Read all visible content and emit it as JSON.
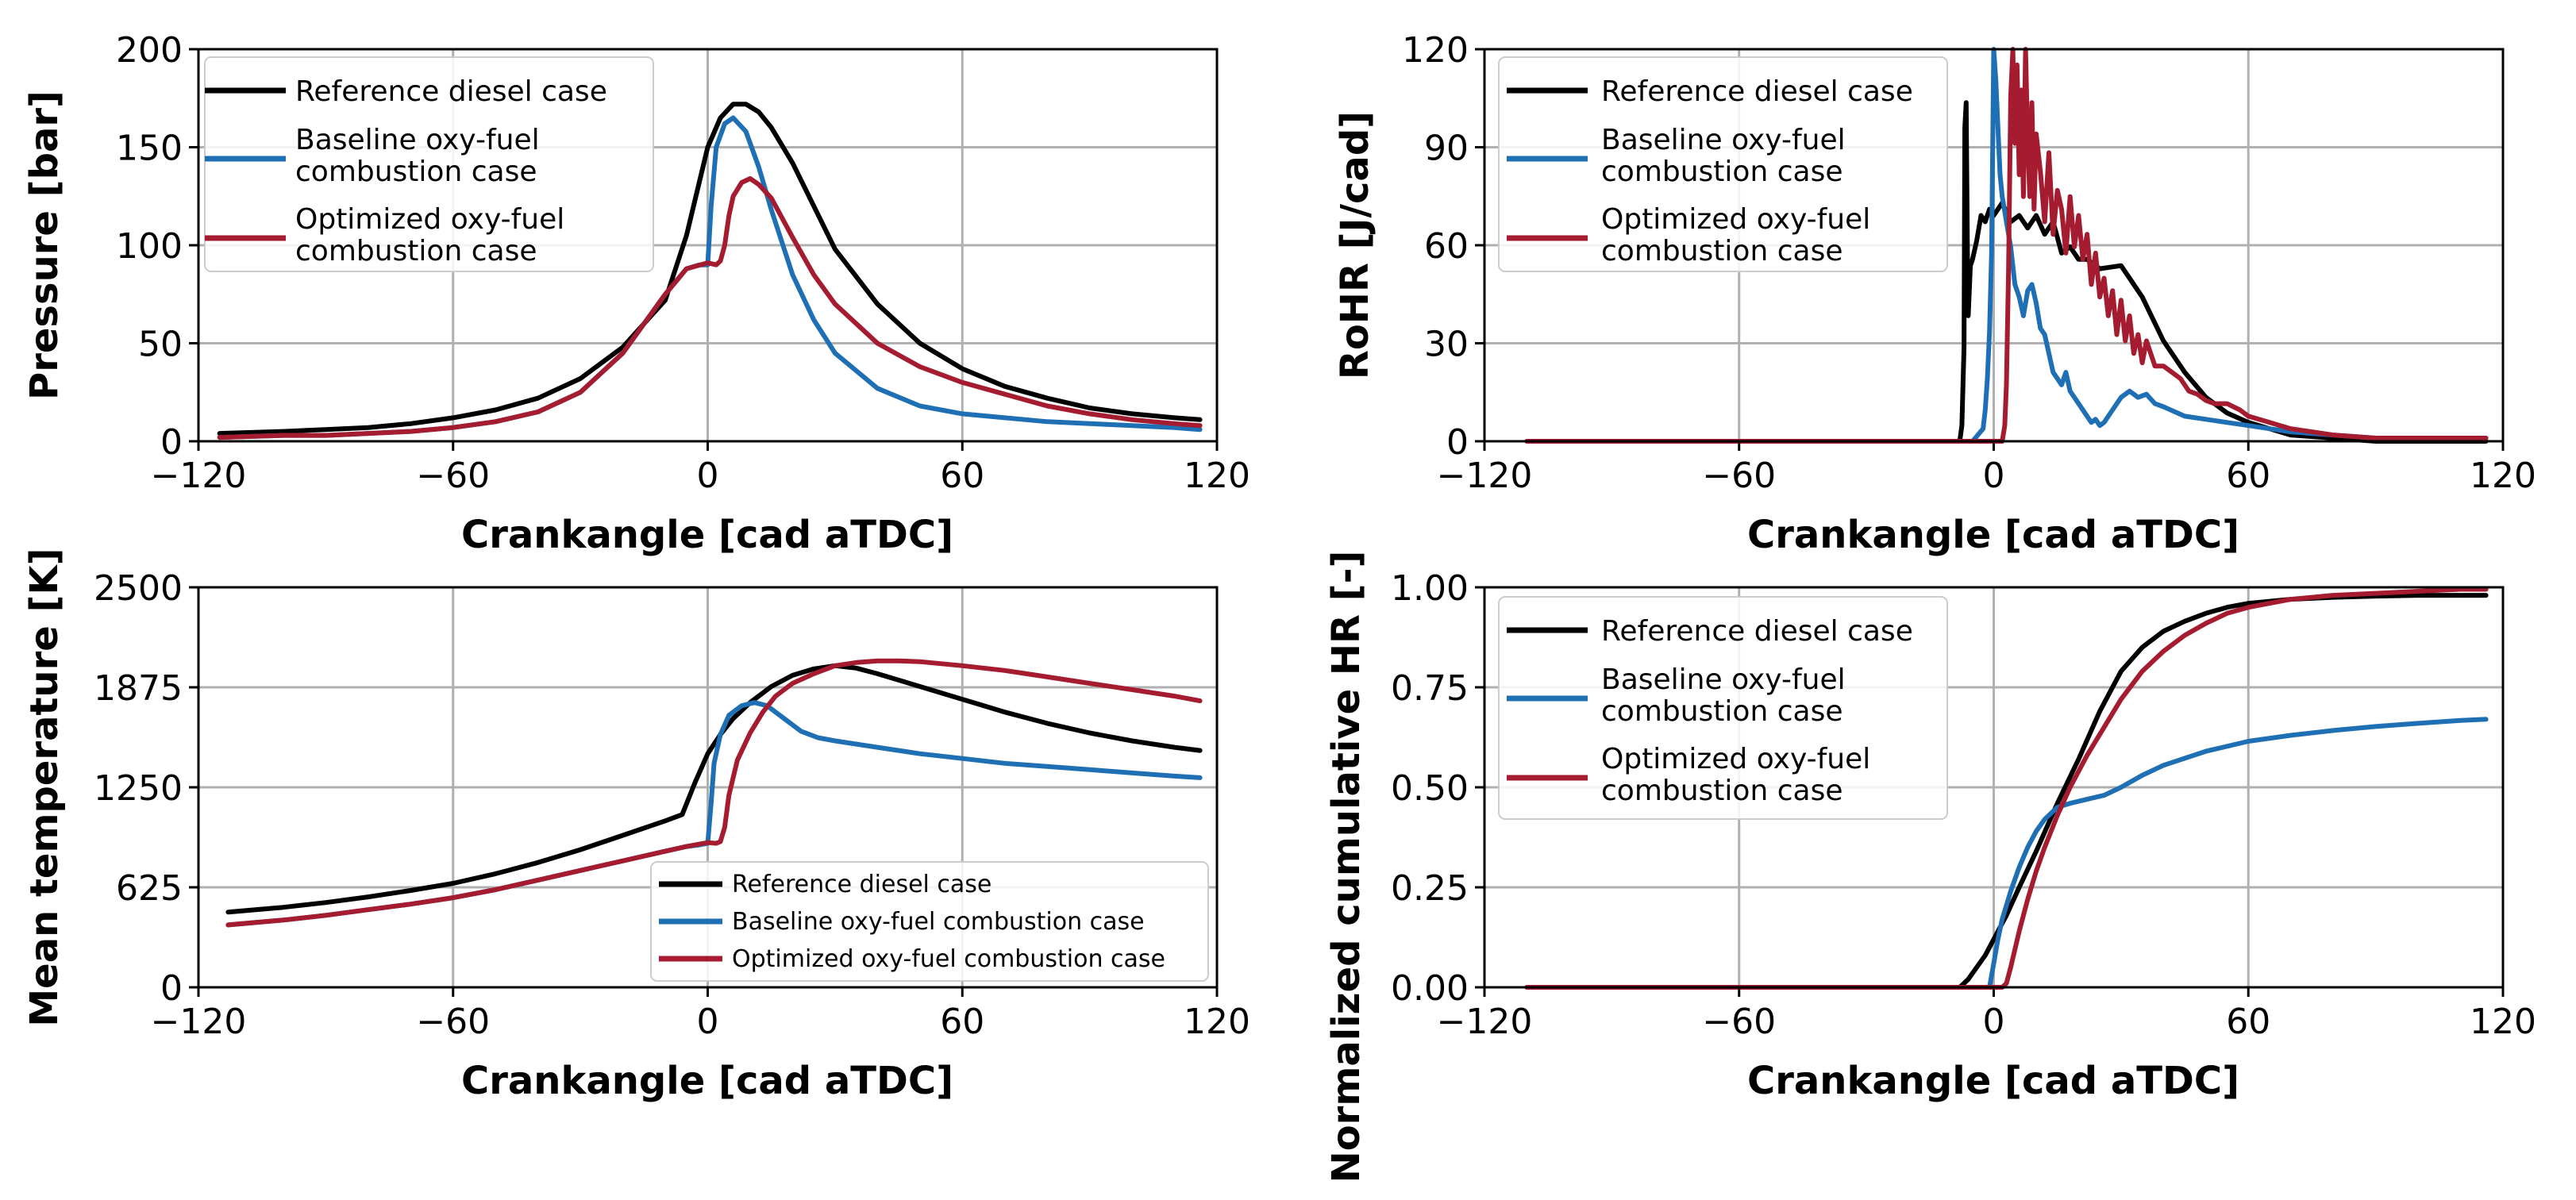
{
  "colors": {
    "reference": "#000000",
    "baseline": "#1f6fb4",
    "optimized": "#a51c30",
    "grid": "#b0b0b0"
  },
  "chart_data": [
    {
      "id": "pressure",
      "type": "line",
      "title": "",
      "xlabel": "Crankangle [cad aTDC]",
      "ylabel": "Pressure [bar]",
      "xlim": [
        -120,
        120
      ],
      "ylim": [
        0,
        200
      ],
      "xticks": [
        "−120",
        "−60",
        "0",
        "60",
        "120"
      ],
      "yticks": [
        "0",
        "50",
        "100",
        "150",
        "200"
      ],
      "legend_position": "upper-left",
      "legend": [
        "Reference diesel case",
        "Baseline oxy-fuel|combustion case",
        "Optimized oxy-fuel| combustion case"
      ],
      "series": [
        {
          "name": "Reference diesel case",
          "color_key": "reference",
          "x": [
            -115,
            -100,
            -90,
            -80,
            -70,
            -60,
            -50,
            -40,
            -30,
            -20,
            -10,
            -5,
            0,
            3,
            6,
            9,
            12,
            15,
            20,
            25,
            30,
            40,
            50,
            60,
            70,
            80,
            90,
            100,
            110,
            116
          ],
          "y": [
            4,
            5,
            6,
            7,
            9,
            12,
            16,
            22,
            32,
            48,
            72,
            105,
            150,
            165,
            172,
            172,
            168,
            160,
            142,
            120,
            98,
            70,
            50,
            37,
            28,
            22,
            17,
            14,
            12,
            11
          ]
        },
        {
          "name": "Baseline oxy-fuel combustion case",
          "color_key": "baseline",
          "x": [
            -115,
            -100,
            -90,
            -80,
            -70,
            -60,
            -50,
            -40,
            -30,
            -20,
            -10,
            -5,
            -2,
            0,
            0.8,
            2,
            4,
            6,
            9,
            12,
            15,
            20,
            25,
            30,
            40,
            50,
            60,
            70,
            80,
            90,
            100,
            110,
            116
          ],
          "y": [
            2,
            3,
            3,
            4,
            5,
            7,
            10,
            15,
            25,
            45,
            75,
            88,
            90,
            90,
            120,
            150,
            162,
            165,
            158,
            140,
            118,
            85,
            62,
            45,
            27,
            18,
            14,
            12,
            10,
            9,
            8,
            7,
            6
          ]
        },
        {
          "name": "Optimized oxy-fuel combustion case",
          "color_key": "optimized",
          "x": [
            -115,
            -100,
            -90,
            -80,
            -70,
            -60,
            -50,
            -40,
            -30,
            -20,
            -10,
            -5,
            0,
            2,
            3,
            4,
            5,
            6,
            8,
            10,
            12,
            15,
            20,
            25,
            30,
            40,
            50,
            60,
            70,
            80,
            90,
            100,
            110,
            116
          ],
          "y": [
            2,
            3,
            3,
            4,
            5,
            7,
            10,
            15,
            25,
            45,
            75,
            88,
            91,
            90,
            92,
            100,
            115,
            125,
            132,
            134,
            131,
            124,
            104,
            85,
            70,
            50,
            38,
            30,
            24,
            18,
            14,
            11,
            9,
            8
          ]
        }
      ]
    },
    {
      "id": "rohr",
      "type": "line",
      "title": "",
      "xlabel": "Crankangle [cad aTDC]",
      "ylabel": "RoHR [J/cad]",
      "xlim": [
        -120,
        120
      ],
      "ylim": [
        0,
        125
      ],
      "xticks": [
        "−120",
        "−60",
        "0",
        "60",
        "120"
      ],
      "yticks": [
        "0",
        "30",
        "60",
        "90",
        "120"
      ],
      "legend_position": "upper-left",
      "legend": [
        "Reference diesel case",
        "Baseline oxy-fuel|combustion case",
        "Optimized oxy-fuel| combustion case"
      ],
      "series": [
        {
          "name": "Reference diesel case",
          "color_key": "reference",
          "x": [
            -110,
            -60,
            -8,
            -7.5,
            -7,
            -6.8,
            -6.5,
            -6.2,
            -6,
            -5.5,
            -5,
            -4,
            -3,
            -2,
            -1,
            0,
            2,
            4,
            6,
            8,
            10,
            12,
            14,
            16,
            18,
            20,
            22,
            25,
            30,
            35,
            40,
            45,
            50,
            55,
            60,
            70,
            80,
            90,
            100,
            110,
            116
          ],
          "y": [
            0,
            0,
            0,
            5,
            30,
            100,
            108,
            60,
            40,
            56,
            58,
            64,
            72,
            70,
            74,
            72,
            76,
            70,
            72,
            68,
            72,
            66,
            70,
            60,
            62,
            58,
            58,
            55,
            56,
            46,
            32,
            22,
            14,
            9,
            6,
            2,
            1,
            0,
            0,
            0,
            0
          ]
        },
        {
          "name": "Baseline oxy-fuel combustion case",
          "color_key": "baseline",
          "x": [
            -110,
            -60,
            -5,
            -2.5,
            -2,
            -1.5,
            -1,
            -0.5,
            0,
            0.5,
            1,
            1.5,
            2,
            2.5,
            3,
            3.5,
            4,
            5,
            6,
            7,
            8,
            9,
            10,
            11,
            12,
            13,
            14,
            15,
            16,
            17,
            18,
            19,
            20,
            21,
            22,
            23,
            24,
            25,
            26,
            28,
            30,
            32,
            34,
            36,
            38,
            40,
            45,
            50,
            55,
            60,
            70,
            80,
            90,
            100,
            110,
            116
          ],
          "y": [
            0,
            0,
            0,
            4,
            10,
            20,
            35,
            60,
            125,
            115,
            100,
            85,
            78,
            74,
            70,
            66,
            62,
            50,
            46,
            40,
            48,
            50,
            44,
            36,
            34,
            28,
            22,
            20,
            18,
            22,
            16,
            14,
            12,
            10,
            8,
            6,
            7,
            5,
            6,
            10,
            14,
            16,
            14,
            15,
            12,
            11,
            8,
            7,
            6,
            5,
            3,
            2,
            1,
            1,
            1,
            1
          ]
        },
        {
          "name": "Optimized oxy-fuel combustion case",
          "color_key": "optimized",
          "x": [
            -110,
            -60,
            2,
            2.6,
            3,
            3.5,
            4,
            4.5,
            5,
            5.5,
            6,
            6.5,
            7,
            7.5,
            8,
            8.5,
            9,
            9.5,
            10,
            11,
            12,
            13,
            14,
            15,
            16,
            17,
            18,
            19,
            20,
            21,
            22,
            23,
            24,
            25,
            26,
            27,
            28,
            29,
            30,
            31,
            32,
            33,
            34,
            35,
            36,
            38,
            40,
            42,
            44,
            46,
            48,
            50,
            52,
            55,
            58,
            60,
            65,
            70,
            80,
            90,
            100,
            110,
            116
          ],
          "y": [
            0,
            0,
            0,
            5,
            18,
            55,
            110,
            125,
            95,
            120,
            85,
            112,
            78,
            125,
            96,
            78,
            108,
            74,
            98,
            86,
            70,
            92,
            66,
            80,
            74,
            60,
            78,
            62,
            72,
            58,
            66,
            50,
            60,
            46,
            52,
            40,
            48,
            34,
            45,
            32,
            40,
            28,
            34,
            25,
            32,
            24,
            24,
            22,
            20,
            16,
            15,
            13,
            12,
            12,
            10,
            8,
            6,
            4,
            2,
            1,
            1,
            1,
            1
          ]
        }
      ]
    },
    {
      "id": "temperature",
      "type": "line",
      "title": "",
      "xlabel": "Crankangle [cad aTDC]",
      "ylabel": "Mean temperature [K]",
      "xlim": [
        -120,
        120
      ],
      "ylim": [
        0,
        2500
      ],
      "xticks": [
        "−120",
        "−60",
        "0",
        "60",
        "120"
      ],
      "yticks": [
        "0",
        "625",
        "1250",
        "1875",
        "2500"
      ],
      "legend_position": "lower-right",
      "legend": [
        "Reference diesel case",
        "Baseline oxy-fuel combustion case",
        "Optimized oxy-fuel combustion case"
      ],
      "series": [
        {
          "name": "Reference diesel case",
          "color_key": "reference",
          "x": [
            -113,
            -100,
            -90,
            -80,
            -70,
            -60,
            -50,
            -40,
            -30,
            -20,
            -10,
            -6,
            -3,
            0,
            3,
            6,
            10,
            15,
            20,
            25,
            30,
            35,
            40,
            50,
            60,
            70,
            80,
            90,
            100,
            110,
            116
          ],
          "y": [
            470,
            500,
            530,
            565,
            605,
            650,
            710,
            780,
            860,
            950,
            1040,
            1080,
            1280,
            1460,
            1580,
            1680,
            1780,
            1880,
            1950,
            1990,
            2010,
            1995,
            1960,
            1880,
            1800,
            1720,
            1650,
            1590,
            1540,
            1500,
            1480
          ]
        },
        {
          "name": "Baseline oxy-fuel combustion case",
          "color_key": "baseline",
          "x": [
            -113,
            -100,
            -90,
            -80,
            -70,
            -60,
            -50,
            -40,
            -30,
            -20,
            -10,
            -5,
            -2,
            0,
            0.8,
            1.5,
            3,
            5,
            8,
            11,
            14,
            18,
            22,
            26,
            30,
            40,
            50,
            60,
            70,
            80,
            90,
            100,
            110,
            116
          ],
          "y": [
            390,
            420,
            450,
            485,
            520,
            560,
            610,
            670,
            730,
            790,
            850,
            880,
            890,
            900,
            1150,
            1400,
            1580,
            1700,
            1760,
            1780,
            1760,
            1680,
            1600,
            1560,
            1540,
            1500,
            1460,
            1430,
            1400,
            1380,
            1360,
            1340,
            1320,
            1310
          ]
        },
        {
          "name": "Optimized oxy-fuel combustion case",
          "color_key": "optimized",
          "x": [
            -113,
            -100,
            -90,
            -80,
            -70,
            -60,
            -50,
            -40,
            -30,
            -20,
            -10,
            -5,
            0,
            2,
            3,
            4,
            5,
            7,
            10,
            13,
            16,
            20,
            25,
            30,
            35,
            40,
            45,
            50,
            60,
            70,
            80,
            90,
            100,
            110,
            116
          ],
          "y": [
            390,
            420,
            450,
            485,
            520,
            560,
            610,
            670,
            730,
            790,
            850,
            880,
            905,
            900,
            910,
            1000,
            1200,
            1420,
            1590,
            1720,
            1820,
            1900,
            1960,
            2010,
            2030,
            2040,
            2040,
            2035,
            2010,
            1980,
            1940,
            1900,
            1860,
            1820,
            1790
          ]
        }
      ]
    },
    {
      "id": "cumulative",
      "type": "line",
      "title": "",
      "xlabel": "Crankangle [cad aTDC]",
      "ylabel": "Normalized cumulative HR [-]",
      "xlim": [
        -120,
        120
      ],
      "ylim": [
        0,
        1
      ],
      "xticks": [
        "−120",
        "−60",
        "0",
        "60",
        "120"
      ],
      "yticks": [
        "0.00",
        "0.25",
        "0.50",
        "0.75",
        "1.00"
      ],
      "legend_position": "upper-left",
      "legend": [
        "Reference diesel case",
        "Baseline oxy-fuel|combustion case",
        "Optimized oxy-fuel| combustion case"
      ],
      "series": [
        {
          "name": "Reference diesel case",
          "color_key": "reference",
          "x": [
            -110,
            -60,
            -8,
            -6,
            -4,
            -2,
            0,
            3,
            6,
            10,
            15,
            20,
            25,
            30,
            35,
            40,
            45,
            50,
            55,
            60,
            70,
            80,
            90,
            100,
            110,
            116
          ],
          "y": [
            0,
            0,
            0,
            0.02,
            0.05,
            0.08,
            0.12,
            0.18,
            0.25,
            0.34,
            0.46,
            0.57,
            0.69,
            0.79,
            0.85,
            0.89,
            0.915,
            0.935,
            0.95,
            0.96,
            0.97,
            0.975,
            0.978,
            0.98,
            0.98,
            0.98
          ]
        },
        {
          "name": "Baseline oxy-fuel combustion case",
          "color_key": "baseline",
          "x": [
            -110,
            -60,
            -1,
            0,
            1,
            2,
            4,
            6,
            8,
            10,
            12,
            15,
            18,
            22,
            26,
            30,
            35,
            40,
            50,
            60,
            70,
            80,
            90,
            100,
            110,
            116
          ],
          "y": [
            0,
            0,
            0,
            0.06,
            0.12,
            0.17,
            0.24,
            0.3,
            0.35,
            0.39,
            0.42,
            0.45,
            0.46,
            0.47,
            0.48,
            0.5,
            0.53,
            0.555,
            0.59,
            0.615,
            0.63,
            0.642,
            0.652,
            0.66,
            0.667,
            0.67
          ]
        },
        {
          "name": "Optimized oxy-fuel combustion case",
          "color_key": "optimized",
          "x": [
            -110,
            -60,
            2,
            3,
            4,
            6,
            8,
            10,
            12,
            15,
            18,
            22,
            26,
            30,
            35,
            40,
            45,
            50,
            55,
            60,
            70,
            80,
            90,
            100,
            110,
            116
          ],
          "y": [
            0,
            0,
            0,
            0.01,
            0.05,
            0.14,
            0.22,
            0.29,
            0.35,
            0.43,
            0.5,
            0.58,
            0.65,
            0.72,
            0.79,
            0.84,
            0.88,
            0.91,
            0.935,
            0.95,
            0.97,
            0.98,
            0.985,
            0.99,
            0.995,
            0.995
          ]
        }
      ]
    }
  ]
}
